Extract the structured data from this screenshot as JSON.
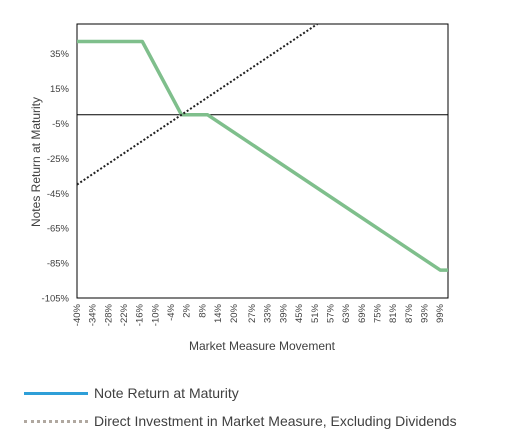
{
  "chart_data": {
    "type": "line",
    "title": "",
    "xlabel": "Market Measure Movement",
    "ylabel": "Notes Return at Maturity",
    "x_ticks": [
      "-40%",
      "-34%",
      "-28%",
      "-22%",
      "-16%",
      "-10%",
      "-4%",
      "2%",
      "8%",
      "14%",
      "20%",
      "27%",
      "33%",
      "39%",
      "45%",
      "51%",
      "57%",
      "63%",
      "69%",
      "75%",
      "81%",
      "87%",
      "93%",
      "99%"
    ],
    "y_ticks": [
      "35%",
      "15%",
      "-5%",
      "-25%",
      "-45%",
      "-65%",
      "-85%",
      "-105%"
    ],
    "xlim": [
      -40,
      102
    ],
    "ylim": [
      -105,
      52
    ],
    "grid": false,
    "legend_position": "bottom",
    "series": [
      {
        "name": "Note Return at Maturity",
        "color": "#7fbf8c",
        "legend_color": "#2e9fd8",
        "style": "solid",
        "x": [
          -40,
          -15,
          0,
          10,
          99,
          102
        ],
        "y": [
          42,
          42,
          0,
          0,
          -89,
          -89
        ]
      },
      {
        "name": "Direct Investment in Market Measure, Excluding Dividends",
        "color": "#222222",
        "legend_color": "#b0a8a0",
        "style": "dotted",
        "x": [
          -40,
          52
        ],
        "y": [
          -40,
          52
        ]
      }
    ]
  }
}
